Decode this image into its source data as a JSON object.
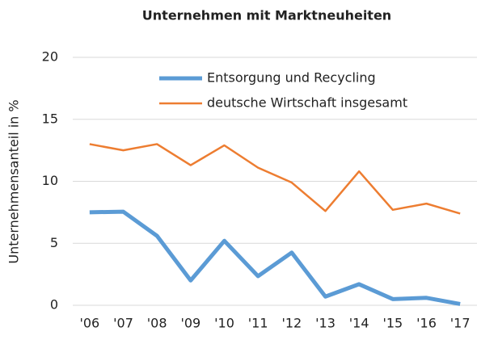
{
  "chart_data": {
    "type": "line",
    "title": "Unternehmen mit Marktneuheiten",
    "y_label": "Unternehmensanteil in %",
    "categories": [
      "'06",
      "'07",
      "'08",
      "'09",
      "'10",
      "'11",
      "'12",
      "'13",
      "'14",
      "'15",
      "'16",
      "'17"
    ],
    "series": [
      {
        "name": "Entsorgung und Recycling",
        "color": "#5b9bd5",
        "width": 5,
        "values": [
          7.5,
          7.55,
          5.6,
          2.0,
          5.2,
          2.35,
          4.25,
          0.7,
          1.7,
          0.5,
          0.6,
          0.1
        ]
      },
      {
        "name": "deutsche Wirtschaft insgesamt",
        "color": "#ed7d31",
        "width": 2.5,
        "values": [
          13.0,
          12.5,
          13.0,
          11.3,
          12.9,
          11.1,
          9.9,
          7.6,
          10.8,
          7.7,
          8.2,
          7.4
        ]
      }
    ],
    "ylim": [
      0,
      20
    ],
    "yticks": [
      0,
      5,
      10,
      15,
      20
    ],
    "grid": true
  }
}
